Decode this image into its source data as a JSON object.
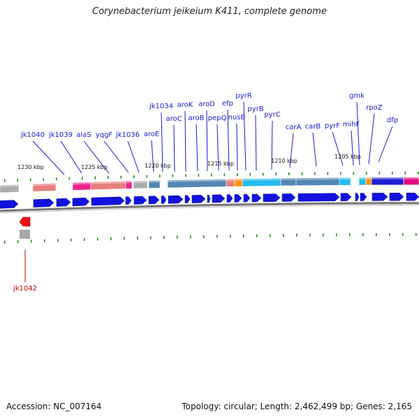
{
  "title": "Corynebacterium jeikeium K411, complete genome",
  "footer": {
    "accession": "Accession: NC_007164",
    "summary": "Topology: circular; Length: 2,462,499 bp; Genes: 2,165"
  },
  "colors": {
    "gene_label": "#1a1ad6",
    "highlight_label": "#cc0000",
    "forward_gene": "#1212e0",
    "reverse_gene": "#ee1111",
    "tick": "#1e8c1e",
    "backbone": "#909090"
  },
  "kbp_ticks": [
    "1230 kbp",
    "1225 kbp",
    "1220 kbp",
    "1215 kbp",
    "1210 kbp",
    "1205 kbp"
  ],
  "gene_labels": [
    "jk1040",
    "jk1039",
    "alaS",
    "yqgF",
    "jk1036",
    "aroE",
    "jk1034",
    "aroC",
    "aroK",
    "aroB",
    "aroD",
    "pepQ",
    "efp",
    "nusB",
    "pyrR",
    "pyrB",
    "pyrC",
    "carA",
    "carB",
    "pyrF",
    "mihF",
    "gmk",
    "rpoZ",
    "dfp"
  ],
  "highlight_gene": "jk1042",
  "legend_colors": {
    "gray": "#a8a8a8",
    "salmon": "#e87878",
    "pink": "#ee1a86",
    "steel": "#4a80b0",
    "orange": "#ff8c00",
    "cyan": "#19b8ee",
    "blue": "#1414d0",
    "magenta": "#e0007a"
  }
}
